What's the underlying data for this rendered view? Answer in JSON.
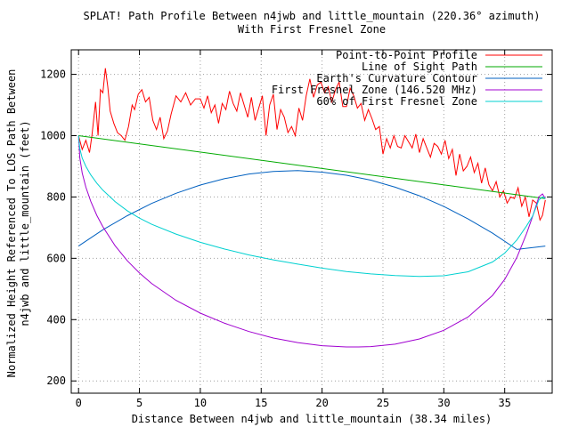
{
  "chart_data": {
    "type": "line",
    "title": "SPLAT! Path Profile Between n4jwb and little_mountain (220.36° azimuth)",
    "subtitle": "With First Fresnel Zone",
    "xlabel": "Distance Between n4jwb and little_mountain (38.34 miles)",
    "ylabel_line1": "Normalized Height Referenced To LOS Path Between",
    "ylabel_line2": "n4jwb and little_mountain (feet)",
    "xlim": [
      -0.6,
      38.9
    ],
    "ylim": [
      160,
      1280
    ],
    "x_ticks": [
      0,
      5,
      10,
      15,
      20,
      25,
      30,
      35
    ],
    "y_ticks": [
      200,
      400,
      600,
      800,
      1000,
      1200
    ],
    "grid": true,
    "legend_position": "top-right",
    "path_length_miles": 38.34,
    "series": [
      {
        "name": "Point-to-Point Profile",
        "color": "#ff0000",
        "x": [
          0,
          0.3,
          0.6,
          0.9,
          1.1,
          1.4,
          1.6,
          1.8,
          2.0,
          2.2,
          2.4,
          2.6,
          2.9,
          3.2,
          3.5,
          3.8,
          4.1,
          4.4,
          4.6,
          4.9,
          5.2,
          5.5,
          5.8,
          6.1,
          6.4,
          6.7,
          7.0,
          7.3,
          7.6,
          8.0,
          8.4,
          8.8,
          9.2,
          9.6,
          10.0,
          10.3,
          10.6,
          10.9,
          11.2,
          11.5,
          11.8,
          12.1,
          12.4,
          12.7,
          13.0,
          13.3,
          13.6,
          13.9,
          14.2,
          14.5,
          14.8,
          15.1,
          15.4,
          15.7,
          16.0,
          16.3,
          16.6,
          16.9,
          17.2,
          17.5,
          17.8,
          18.1,
          18.4,
          18.7,
          19.0,
          19.3,
          19.6,
          19.9,
          20.2,
          20.5,
          20.8,
          21.1,
          21.4,
          21.7,
          22.0,
          22.3,
          22.6,
          22.9,
          23.2,
          23.5,
          23.8,
          24.1,
          24.4,
          24.7,
          25.0,
          25.3,
          25.6,
          25.9,
          26.2,
          26.5,
          26.8,
          27.1,
          27.4,
          27.7,
          28.0,
          28.3,
          28.6,
          28.9,
          29.2,
          29.5,
          29.8,
          30.1,
          30.4,
          30.7,
          31.0,
          31.3,
          31.6,
          31.9,
          32.2,
          32.5,
          32.8,
          33.1,
          33.4,
          33.7,
          34.0,
          34.3,
          34.6,
          34.9,
          35.2,
          35.5,
          35.8,
          36.1,
          36.4,
          36.7,
          37.0,
          37.3,
          37.6,
          37.9,
          38.1,
          38.34
        ],
        "values": [
          1000,
          955,
          985,
          945,
          1000,
          1110,
          1000,
          1150,
          1140,
          1220,
          1160,
          1080,
          1040,
          1010,
          1000,
          985,
          1030,
          1100,
          1085,
          1135,
          1150,
          1110,
          1125,
          1050,
          1020,
          1060,
          990,
          1015,
          1070,
          1130,
          1110,
          1140,
          1100,
          1120,
          1120,
          1090,
          1130,
          1075,
          1100,
          1040,
          1105,
          1085,
          1145,
          1105,
          1080,
          1140,
          1100,
          1060,
          1125,
          1050,
          1090,
          1130,
          1000,
          1100,
          1135,
          1020,
          1085,
          1060,
          1010,
          1030,
          1000,
          1090,
          1050,
          1130,
          1185,
          1125,
          1165,
          1175,
          1140,
          1160,
          1110,
          1150,
          1175,
          1095,
          1095,
          1155,
          1130,
          1090,
          1105,
          1050,
          1085,
          1055,
          1020,
          1030,
          940,
          990,
          960,
          1000,
          965,
          960,
          1000,
          980,
          960,
          1005,
          945,
          990,
          960,
          930,
          975,
          965,
          940,
          985,
          925,
          955,
          870,
          940,
          885,
          900,
          930,
          880,
          910,
          845,
          895,
          840,
          820,
          850,
          800,
          820,
          780,
          800,
          795,
          830,
          770,
          800,
          735,
          790,
          780,
          725,
          740,
          790
        ]
      },
      {
        "name": "Line of Sight Path",
        "color": "#00aa00",
        "x": [
          0,
          38.34
        ],
        "values": [
          1000,
          795
        ]
      },
      {
        "name": "Earth's Curvature Contour",
        "color": "#0060c0",
        "x": [
          0,
          2,
          4,
          6,
          8,
          10,
          12,
          14,
          16,
          18,
          20,
          22,
          24,
          26,
          28,
          30,
          32,
          34,
          36,
          38.34
        ],
        "values": [
          640,
          693,
          739,
          779,
          812,
          839,
          860,
          875,
          883,
          886,
          881,
          871,
          855,
          832,
          804,
          769,
          728,
          682,
          629,
          640
        ]
      },
      {
        "name": "First Fresnel Zone (146.520 MHz)",
        "color": "#a000d0",
        "x": [
          0,
          0.1,
          0.3,
          0.6,
          1,
          1.5,
          2,
          3,
          4,
          5,
          6,
          8,
          10,
          12,
          14,
          16,
          18,
          20,
          22,
          23,
          24,
          26,
          28,
          30,
          32,
          34,
          35,
          36,
          36.8,
          37.3,
          37.8,
          38.1,
          38.34
        ],
        "values": [
          1000,
          928,
          878,
          832,
          786,
          740,
          703,
          641,
          592,
          552,
          518,
          463,
          421,
          388,
          361,
          340,
          325,
          315,
          311,
          311,
          312,
          320,
          337,
          365,
          409,
          479,
          531,
          603,
          681,
          737,
          800,
          810,
          795
        ]
      },
      {
        "name": "60% of First Fresnel Zone",
        "color": "#00d0d0",
        "x": [
          0,
          0.1,
          0.3,
          0.6,
          1,
          1.5,
          2,
          3,
          4,
          5,
          6,
          8,
          10,
          12,
          14,
          16,
          18,
          20,
          22,
          24,
          26,
          28,
          30,
          32,
          34,
          35,
          36,
          36.8,
          37.3,
          37.8,
          38.1,
          38.34
        ],
        "values": [
          1000,
          958,
          927,
          900,
          872,
          845,
          822,
          785,
          755,
          731,
          711,
          679,
          652,
          630,
          611,
          595,
          581,
          568,
          557,
          549,
          544,
          541,
          543,
          556,
          588,
          617,
          660,
          706,
          738,
          790,
          800,
          795
        ]
      }
    ]
  }
}
